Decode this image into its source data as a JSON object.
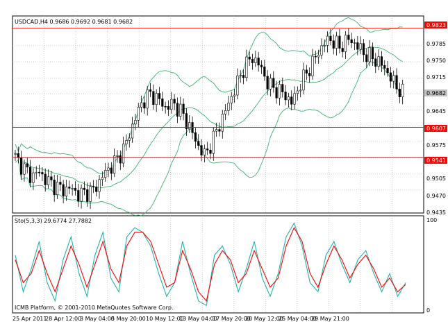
{
  "main_chart": {
    "header": "USDCAD,H4  0.9686 0.9692 0.9681 0.9682",
    "price_labels": [
      "0.9785",
      "0.9750",
      "0.9715",
      "0.9645",
      "0.9575",
      "0.9505",
      "0.9470",
      "0.9435"
    ],
    "current_price": "0.9682",
    "hlines": [
      "0.9823",
      "0.9607",
      "0.9541"
    ]
  },
  "indicator": {
    "header": "Sto(5,3,3) 29.6774 27.7882",
    "scale_top": "100",
    "scale_bottom": "0",
    "copyright": "ICMB Platform, © 2001-2010 MetaQuotes Software Corp."
  },
  "time_labels": [
    "25 Apr 2011",
    "28 Apr 12:00",
    "3 May 04:00",
    "5 May 20:00",
    "10 May 12:00",
    "13 May 04:00",
    "17 May 20:00",
    "20 May 12:00",
    "25 May 04:00",
    "29 May 21:00"
  ],
  "colors": {
    "bollinger": "#3cb371",
    "hline": "#ff0000",
    "stoch_main": "#20b2aa",
    "stoch_signal": "#ff0000",
    "grid": "#b0b0b0",
    "candle": "#000000"
  },
  "chart_data": [
    {
      "type": "candlestick",
      "title": "USDCAD,H4",
      "ylim": [
        0.942,
        0.985
      ],
      "close_path": [
        0.9541,
        0.952,
        0.95,
        0.951,
        0.949,
        0.948,
        0.947,
        0.9475,
        0.946,
        0.9465,
        0.947,
        0.95,
        0.952,
        0.954,
        0.957,
        0.962,
        0.966,
        0.968,
        0.967,
        0.965,
        0.966,
        0.964,
        0.961,
        0.957,
        0.9545,
        0.958,
        0.962,
        0.966,
        0.97,
        0.974,
        0.976,
        0.974,
        0.97,
        0.969,
        0.968,
        0.966,
        0.97,
        0.973,
        0.976,
        0.979,
        0.98,
        0.978,
        0.98,
        0.979,
        0.977,
        0.976,
        0.975,
        0.973,
        0.97,
        0.9682
      ],
      "horizontal_lines": [
        0.9823,
        0.9607,
        0.9541
      ],
      "overlay": "Bollinger Bands"
    },
    {
      "type": "line",
      "title": "Sto(5,3,3) 29.6774 27.7882",
      "ylim": [
        0,
        100
      ],
      "series": [
        {
          "name": "",
          "values": [
            60,
            20,
            45,
            75,
            30,
            10,
            55,
            80,
            40,
            15,
            60,
            85,
            35,
            20,
            80,
            90,
            85,
            70,
            40,
            15,
            30,
            75,
            40,
            10,
            5,
            60,
            70,
            50,
            20,
            45,
            75,
            35,
            15,
            40,
            80,
            95,
            70,
            30,
            20,
            60,
            75,
            50,
            30,
            55,
            65,
            40,
            20,
            40,
            15,
            30
          ]
        },
        {
          "name": "",
          "values": [
            55,
            30,
            40,
            65,
            40,
            20,
            45,
            70,
            50,
            25,
            50,
            75,
            45,
            30,
            70,
            85,
            85,
            75,
            50,
            25,
            30,
            65,
            45,
            20,
            10,
            50,
            65,
            55,
            30,
            40,
            65,
            45,
            25,
            35,
            70,
            90,
            75,
            40,
            25,
            50,
            70,
            55,
            35,
            50,
            60,
            45,
            25,
            35,
            20,
            28
          ]
        }
      ]
    }
  ]
}
